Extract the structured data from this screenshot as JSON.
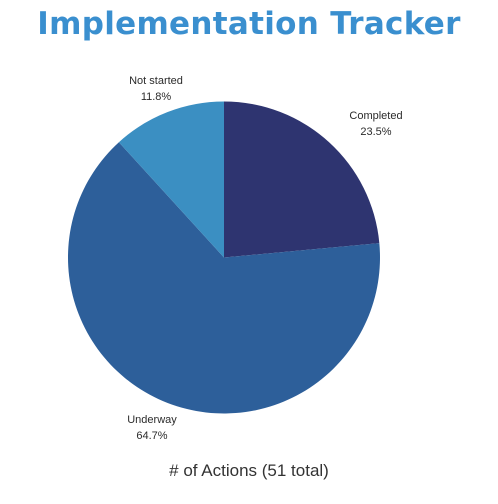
{
  "title": "Implementation Tracker",
  "caption": "# of Actions (51 total)",
  "colors": {
    "title": "#3a8fcf",
    "completed": "#2e3470",
    "underway": "#2d5f9a",
    "not_started": "#3b8fc2"
  },
  "chart_data": {
    "type": "pie",
    "title": "Implementation Tracker",
    "xlabel": "# of Actions (51 total)",
    "total": 51,
    "slices": [
      {
        "label": "Completed",
        "value": 12,
        "percent_label": "23.5%",
        "color": "#2e3470"
      },
      {
        "label": "Underway",
        "value": 33,
        "percent_label": "64.7%",
        "color": "#2d5f9a"
      },
      {
        "label": "Not started",
        "value": 6,
        "percent_label": "11.8%",
        "color": "#3b8fc2"
      }
    ],
    "start_angle": "12 o'clock",
    "direction": "clockwise",
    "legend": "none"
  }
}
